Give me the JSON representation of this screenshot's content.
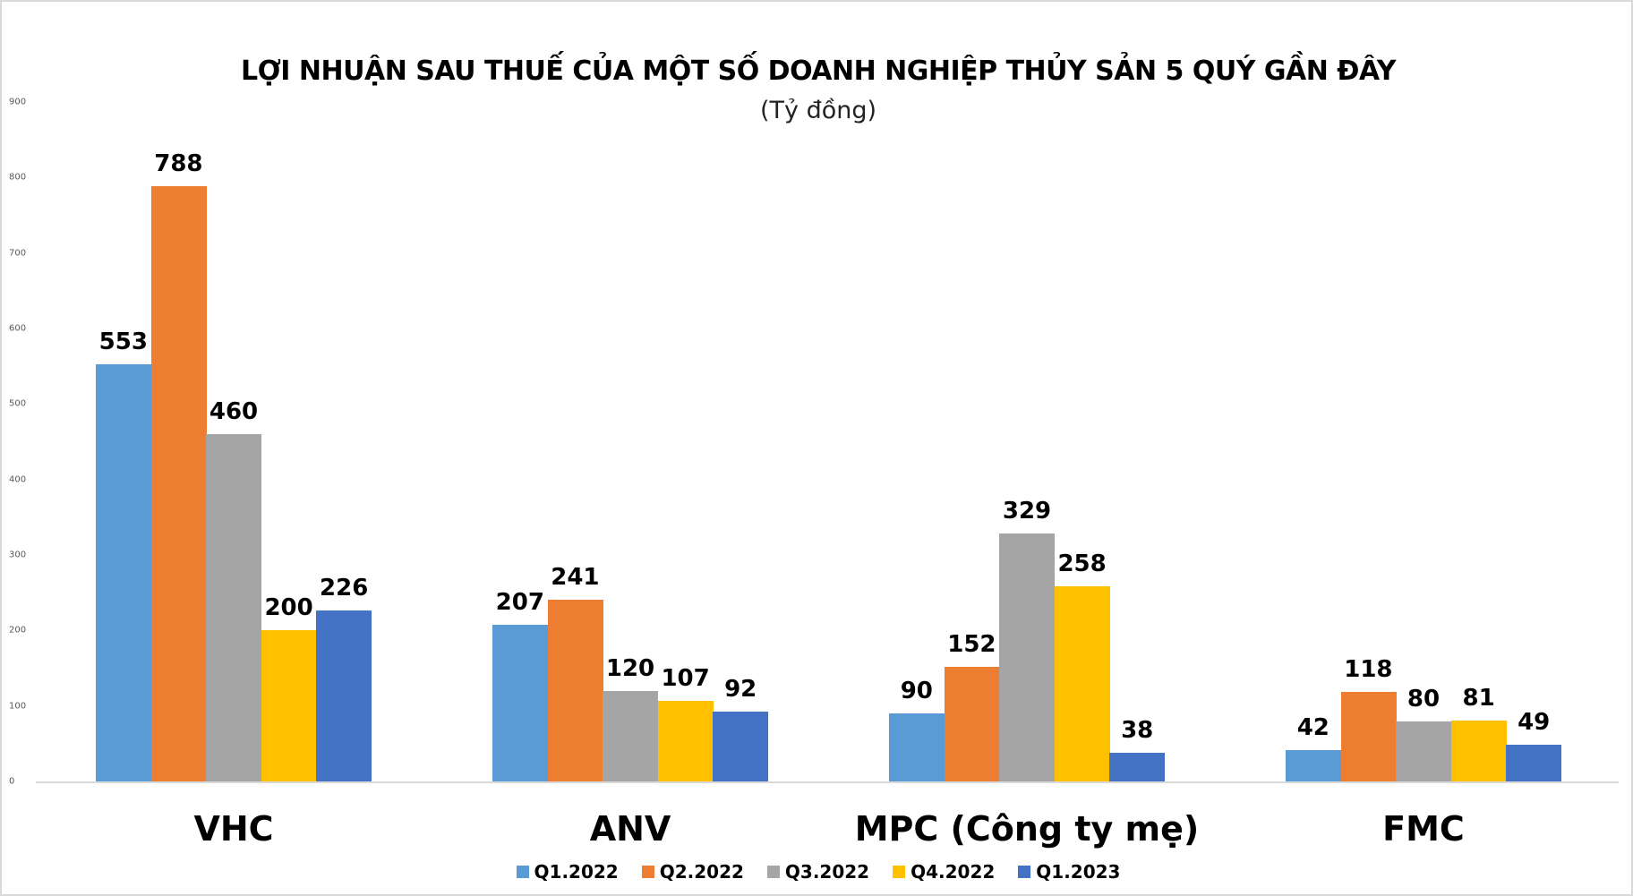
{
  "chart_data": {
    "type": "bar",
    "title": "LỢI NHUẬN SAU THUẾ CỦA MỘT SỐ DOANH NGHIỆP THỦY SẢN 5 QUÝ GẦN ĐÂY",
    "subtitle": "(Tỷ đồng)",
    "xlabel": "",
    "ylabel": "",
    "ylim": [
      0,
      900
    ],
    "yticks": [
      "0",
      "100",
      "200",
      "300",
      "400",
      "500",
      "600",
      "700",
      "800",
      "900"
    ],
    "categories": [
      "VHC",
      "ANV",
      "MPC (Công ty mẹ)",
      "FMC"
    ],
    "series": [
      {
        "name": "Q1.2022",
        "color": "#5b9bd5",
        "values": [
          553,
          207,
          90,
          42
        ]
      },
      {
        "name": "Q2.2022",
        "color": "#ed7d31",
        "values": [
          788,
          241,
          152,
          118
        ]
      },
      {
        "name": "Q3.2022",
        "color": "#a5a5a5",
        "values": [
          460,
          120,
          329,
          80
        ]
      },
      {
        "name": "Q4.2022",
        "color": "#ffc000",
        "values": [
          200,
          107,
          258,
          81
        ]
      },
      {
        "name": "Q1.2023",
        "color": "#4472c4",
        "values": [
          226,
          92,
          38,
          49
        ]
      }
    ],
    "grid": false,
    "legend_position": "bottom",
    "data_labels": true
  }
}
